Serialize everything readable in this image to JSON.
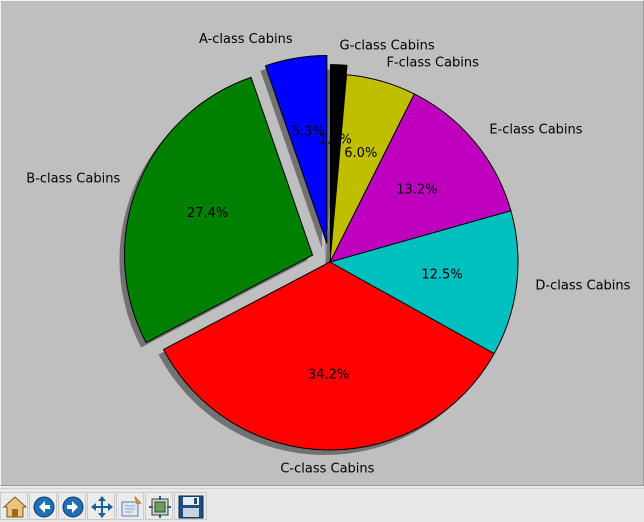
{
  "chart_data": {
    "type": "pie",
    "title": "",
    "start_angle_deg": 90,
    "direction": "counterclockwise",
    "shadow": true,
    "slices": [
      {
        "label": "A-class Cabins",
        "value": 5.3,
        "pct_label": "5.3%",
        "color": "#0000ff",
        "explode": 0.1
      },
      {
        "label": "B-class Cabins",
        "value": 27.4,
        "pct_label": "27.4%",
        "color": "#008000",
        "explode": 0.1
      },
      {
        "label": "C-class Cabins",
        "value": 34.2,
        "pct_label": "34.2%",
        "color": "#ff0000",
        "explode": 0
      },
      {
        "label": "D-class Cabins",
        "value": 12.5,
        "pct_label": "12.5%",
        "color": "#00bfbf",
        "explode": 0
      },
      {
        "label": "E-class Cabins",
        "value": 13.2,
        "pct_label": "13.2%",
        "color": "#bf00bf",
        "explode": 0
      },
      {
        "label": "F-class Cabins",
        "value": 6.0,
        "pct_label": "6.0%",
        "color": "#bfbf00",
        "explode": 0
      },
      {
        "label": "G-class Cabins",
        "value": 1.4,
        "pct_label": "1.4%",
        "color": "#000000",
        "explode": 0.05
      }
    ]
  },
  "toolbar": {
    "buttons": [
      {
        "name": "home-button",
        "icon": "home-icon"
      },
      {
        "name": "back-button",
        "icon": "back-arrow-icon"
      },
      {
        "name": "forward-button",
        "icon": "forward-arrow-icon"
      },
      {
        "name": "pan-button",
        "icon": "pan-arrows-icon"
      },
      {
        "name": "zoom-button",
        "icon": "zoom-rect-icon"
      },
      {
        "name": "subplots-button",
        "icon": "subplots-icon"
      },
      {
        "name": "save-button",
        "icon": "floppy-disk-icon"
      }
    ]
  }
}
